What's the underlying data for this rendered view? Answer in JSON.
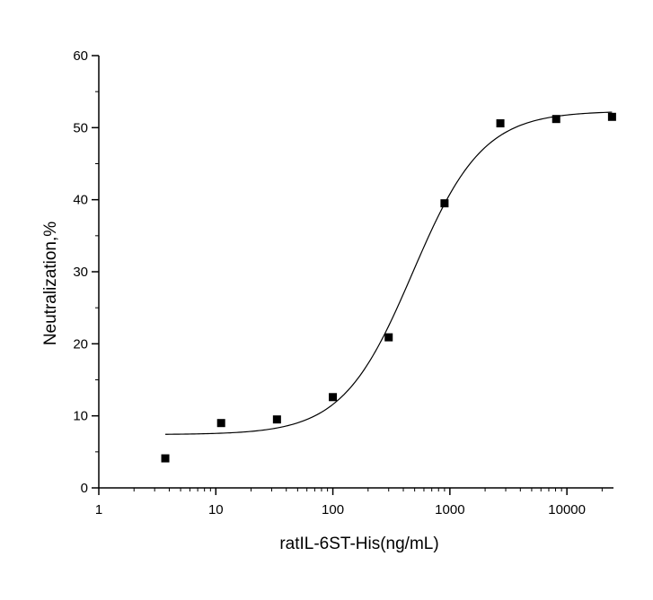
{
  "chart_data": {
    "type": "scatter",
    "xlabel": "ratIL-6ST-His(ng/mL)",
    "ylabel": "Neutralization,%",
    "xscale": "log",
    "xlim": [
      1,
      25000
    ],
    "ylim": [
      0,
      60
    ],
    "x_ticks": [
      1,
      10,
      100,
      1000,
      10000
    ],
    "x_tick_labels": [
      "1",
      "10",
      "100",
      "1000",
      "10000"
    ],
    "y_ticks": [
      0,
      10,
      20,
      30,
      40,
      50,
      60
    ],
    "y_tick_labels": [
      "0",
      "10",
      "20",
      "30",
      "40",
      "50",
      "60"
    ],
    "grid": false,
    "series": [
      {
        "marker": "square",
        "color": "#000000",
        "x": [
          3.7,
          11.1,
          33.3,
          100,
          300,
          900,
          2700,
          8100,
          24300
        ],
        "y": [
          4.1,
          9.0,
          9.5,
          12.6,
          20.9,
          39.5,
          50.6,
          51.2,
          51.5
        ]
      }
    ],
    "fit_curve": {
      "type": "logistic",
      "color": "#000000",
      "bottom": 7.4,
      "top": 52.3,
      "ec50": 480,
      "hill": 1.45,
      "x_range": [
        3.7,
        24300
      ]
    }
  }
}
